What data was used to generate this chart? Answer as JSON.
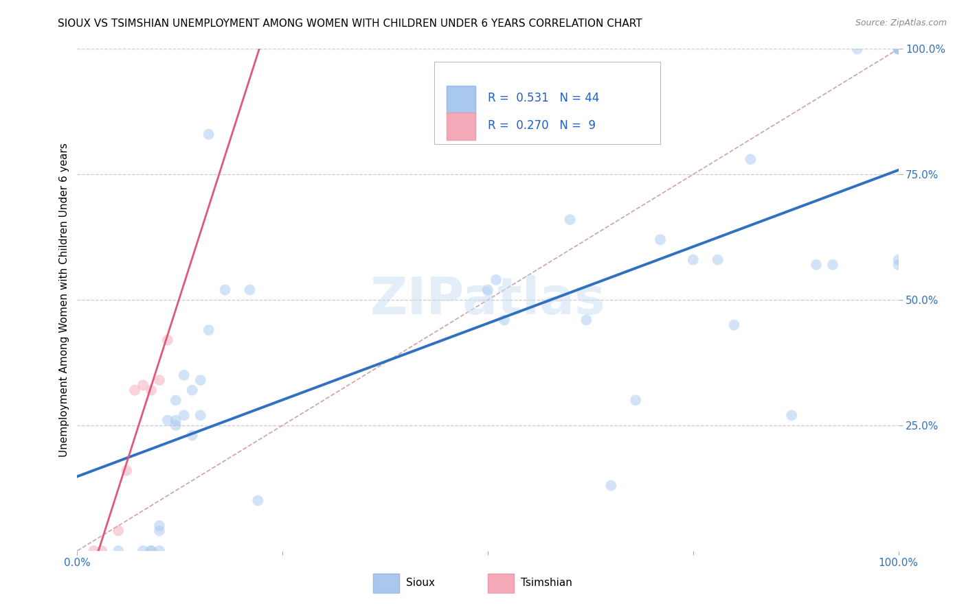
{
  "title": "SIOUX VS TSIMSHIAN UNEMPLOYMENT AMONG WOMEN WITH CHILDREN UNDER 6 YEARS CORRELATION CHART",
  "source": "Source: ZipAtlas.com",
  "ylabel_label": "Unemployment Among Women with Children Under 6 years",
  "sioux_R": 0.531,
  "sioux_N": 44,
  "tsimshian_R": 0.27,
  "tsimshian_N": 9,
  "sioux_color": "#a8c8f0",
  "tsimshian_color": "#f4a8b8",
  "sioux_line_color": "#3070c0",
  "tsimshian_line_color": "#e05878",
  "diagonal_color": "#d0a0a8",
  "grid_color": "#cccccc",
  "legend_color": "#2060c0",
  "sioux_x": [
    0.05,
    0.08,
    0.09,
    0.09,
    0.1,
    0.1,
    0.1,
    0.11,
    0.12,
    0.12,
    0.12,
    0.13,
    0.13,
    0.14,
    0.14,
    0.15,
    0.15,
    0.16,
    0.16,
    0.18,
    0.21,
    0.22,
    0.5,
    0.51,
    0.52,
    0.6,
    0.62,
    0.65,
    0.68,
    0.71,
    0.75,
    0.78,
    0.8,
    0.82,
    0.87,
    0.9,
    0.92,
    0.95,
    1.0,
    1.0,
    1.0,
    1.0,
    1.0,
    1.0
  ],
  "sioux_y": [
    0.0,
    0.0,
    0.0,
    0.0,
    0.0,
    0.04,
    0.05,
    0.26,
    0.25,
    0.26,
    0.3,
    0.35,
    0.27,
    0.32,
    0.23,
    0.34,
    0.27,
    0.83,
    0.44,
    0.52,
    0.52,
    0.1,
    0.52,
    0.54,
    0.46,
    0.66,
    0.46,
    0.13,
    0.3,
    0.62,
    0.58,
    0.58,
    0.45,
    0.78,
    0.27,
    0.57,
    0.57,
    1.0,
    1.0,
    1.0,
    1.0,
    1.0,
    0.57,
    0.58
  ],
  "tsimshian_x": [
    0.02,
    0.03,
    0.05,
    0.06,
    0.07,
    0.08,
    0.09,
    0.1,
    0.11
  ],
  "tsimshian_y": [
    0.0,
    0.0,
    0.04,
    0.16,
    0.32,
    0.33,
    0.32,
    0.34,
    0.42
  ],
  "xlim": [
    0.0,
    1.0
  ],
  "ylim": [
    0.0,
    1.0
  ],
  "xticks": [
    0.0,
    0.25,
    0.5,
    0.75,
    1.0
  ],
  "yticks": [
    0.25,
    0.5,
    0.75,
    1.0
  ],
  "xticklabels": [
    "0.0%",
    "",
    "",
    "",
    "100.0%"
  ],
  "yticklabels_right": [
    "25.0%",
    "50.0%",
    "75.0%",
    "100.0%"
  ],
  "bottom_xtick_label": "0.0%",
  "right_ytick_labels": [
    "25.0%",
    "50.0%",
    "75.0%",
    "100.0%"
  ],
  "marker_size": 130,
  "marker_alpha": 0.5
}
